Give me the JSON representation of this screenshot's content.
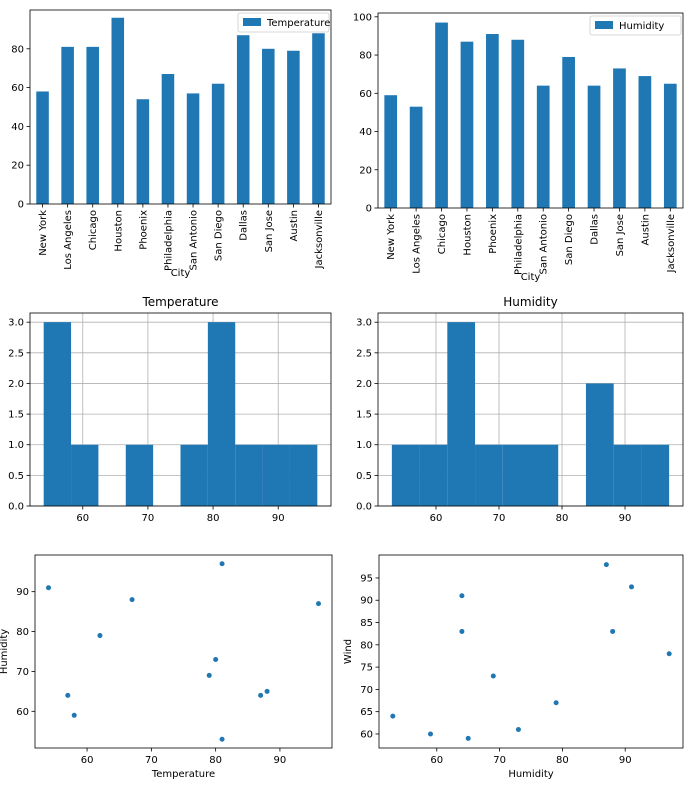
{
  "chart_data": [
    {
      "type": "bar",
      "categories": [
        "New York",
        "Los Angeles",
        "Chicago",
        "Houston",
        "Phoenix",
        "Philadelphia",
        "San Antonio",
        "San Diego",
        "Dallas",
        "San Jose",
        "Austin",
        "Jacksonville"
      ],
      "series": [
        {
          "name": "Temperature",
          "values": [
            58,
            81,
            81,
            96,
            54,
            67,
            57,
            62,
            87,
            80,
            79,
            88
          ]
        }
      ],
      "xlabel": "City",
      "ylabel": "",
      "ylim": [
        0,
        100
      ],
      "yticks": [
        0,
        20,
        40,
        60,
        80
      ],
      "legend": "top-right",
      "grid": false,
      "color": "#1f77b4"
    },
    {
      "type": "bar",
      "categories": [
        "New York",
        "Los Angeles",
        "Chicago",
        "Houston",
        "Phoenix",
        "Philadelphia",
        "San Antonio",
        "San Diego",
        "Dallas",
        "San Jose",
        "Austin",
        "Jacksonville"
      ],
      "series": [
        {
          "name": "Humidity",
          "values": [
            59,
            53,
            97,
            87,
            91,
            88,
            64,
            79,
            64,
            73,
            69,
            65
          ]
        }
      ],
      "xlabel": "City",
      "ylabel": "",
      "ylim": [
        0,
        102
      ],
      "yticks": [
        0,
        20,
        40,
        60,
        80,
        100
      ],
      "legend": "top-right",
      "grid": false,
      "color": "#1f77b4"
    },
    {
      "type": "histogram",
      "title": "Temperature",
      "bins": [
        {
          "start": 54.0,
          "end": 58.2,
          "count": 3
        },
        {
          "start": 58.2,
          "end": 62.4,
          "count": 1
        },
        {
          "start": 66.6,
          "end": 70.8,
          "count": 1
        },
        {
          "start": 75.0,
          "end": 79.2,
          "count": 1
        },
        {
          "start": 79.2,
          "end": 83.4,
          "count": 3
        },
        {
          "start": 83.4,
          "end": 87.6,
          "count": 1
        },
        {
          "start": 87.6,
          "end": 91.8,
          "count": 1
        },
        {
          "start": 91.8,
          "end": 96.0,
          "count": 1
        }
      ],
      "xlim": [
        51.9,
        98.1
      ],
      "xticks": [
        60,
        70,
        80,
        90
      ],
      "ylim": [
        0,
        3.15
      ],
      "yticks": [
        0.0,
        0.5,
        1.0,
        1.5,
        2.0,
        2.5,
        3.0
      ],
      "grid": true,
      "color": "#1f77b4"
    },
    {
      "type": "histogram",
      "title": "Humidity",
      "bins": [
        {
          "start": 53.0,
          "end": 57.4,
          "count": 1
        },
        {
          "start": 57.4,
          "end": 61.8,
          "count": 1
        },
        {
          "start": 61.8,
          "end": 66.2,
          "count": 3
        },
        {
          "start": 66.2,
          "end": 70.6,
          "count": 1
        },
        {
          "start": 70.6,
          "end": 75.0,
          "count": 1
        },
        {
          "start": 75.0,
          "end": 79.4,
          "count": 1
        },
        {
          "start": 83.8,
          "end": 88.2,
          "count": 2
        },
        {
          "start": 88.2,
          "end": 92.6,
          "count": 1
        },
        {
          "start": 92.6,
          "end": 97.0,
          "count": 1
        }
      ],
      "xlim": [
        50.8,
        99.2
      ],
      "xticks": [
        60,
        70,
        80,
        90
      ],
      "ylim": [
        0,
        3.15
      ],
      "yticks": [
        0.0,
        0.5,
        1.0,
        1.5,
        2.0,
        2.5,
        3.0
      ],
      "grid": true,
      "color": "#1f77b4"
    },
    {
      "type": "scatter",
      "x": [
        58,
        81,
        81,
        96,
        54,
        67,
        57,
        62,
        87,
        80,
        79,
        88
      ],
      "y": [
        59,
        53,
        97,
        87,
        91,
        88,
        64,
        79,
        64,
        73,
        69,
        65
      ],
      "xlabel": "Temperature",
      "ylabel": "Humidity",
      "xlim": [
        51.9,
        98.1
      ],
      "xticks": [
        60,
        70,
        80,
        90
      ],
      "ylim": [
        50.8,
        99.2
      ],
      "yticks": [
        60,
        70,
        80,
        90
      ],
      "grid": false,
      "color": "#1f77b4"
    },
    {
      "type": "scatter",
      "x": [
        59,
        53,
        97,
        87,
        91,
        88,
        64,
        79,
        64,
        73,
        69,
        65
      ],
      "y": [
        60,
        64,
        78,
        98,
        93,
        83,
        91,
        67,
        83,
        61,
        73,
        59
      ],
      "xlabel": "Humidity",
      "ylabel": "Wind",
      "xlim": [
        50.8,
        99.2
      ],
      "xticks": [
        60,
        70,
        80,
        90
      ],
      "ylim": [
        56.85,
        100.15
      ],
      "yticks": [
        60,
        65,
        70,
        75,
        80,
        85,
        90,
        95
      ],
      "grid": false,
      "color": "#1f77b4"
    }
  ]
}
